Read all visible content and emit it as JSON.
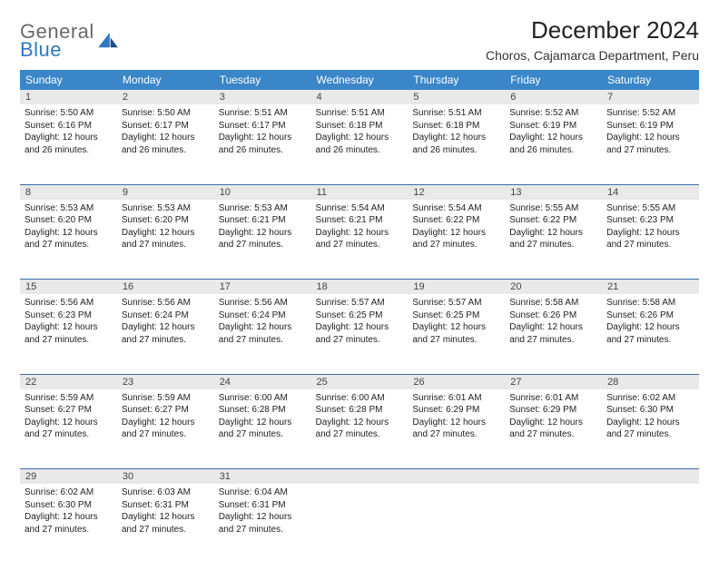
{
  "brand": {
    "line1": "General",
    "line2": "Blue"
  },
  "title": "December 2024",
  "location": "Choros, Cajamarca Department, Peru",
  "colors": {
    "header_bg": "#3a86c8",
    "header_text": "#ffffff",
    "daynum_bg": "#e9e9e9",
    "border": "#3a6ea8",
    "brand_gray": "#6a6a6a",
    "brand_blue": "#2f78c2"
  },
  "weekdays": [
    "Sunday",
    "Monday",
    "Tuesday",
    "Wednesday",
    "Thursday",
    "Friday",
    "Saturday"
  ],
  "weeks": [
    [
      {
        "n": "1",
        "sr": "5:50 AM",
        "ss": "6:16 PM",
        "dl": "12 hours and 26 minutes."
      },
      {
        "n": "2",
        "sr": "5:50 AM",
        "ss": "6:17 PM",
        "dl": "12 hours and 26 minutes."
      },
      {
        "n": "3",
        "sr": "5:51 AM",
        "ss": "6:17 PM",
        "dl": "12 hours and 26 minutes."
      },
      {
        "n": "4",
        "sr": "5:51 AM",
        "ss": "6:18 PM",
        "dl": "12 hours and 26 minutes."
      },
      {
        "n": "5",
        "sr": "5:51 AM",
        "ss": "6:18 PM",
        "dl": "12 hours and 26 minutes."
      },
      {
        "n": "6",
        "sr": "5:52 AM",
        "ss": "6:19 PM",
        "dl": "12 hours and 26 minutes."
      },
      {
        "n": "7",
        "sr": "5:52 AM",
        "ss": "6:19 PM",
        "dl": "12 hours and 27 minutes."
      }
    ],
    [
      {
        "n": "8",
        "sr": "5:53 AM",
        "ss": "6:20 PM",
        "dl": "12 hours and 27 minutes."
      },
      {
        "n": "9",
        "sr": "5:53 AM",
        "ss": "6:20 PM",
        "dl": "12 hours and 27 minutes."
      },
      {
        "n": "10",
        "sr": "5:53 AM",
        "ss": "6:21 PM",
        "dl": "12 hours and 27 minutes."
      },
      {
        "n": "11",
        "sr": "5:54 AM",
        "ss": "6:21 PM",
        "dl": "12 hours and 27 minutes."
      },
      {
        "n": "12",
        "sr": "5:54 AM",
        "ss": "6:22 PM",
        "dl": "12 hours and 27 minutes."
      },
      {
        "n": "13",
        "sr": "5:55 AM",
        "ss": "6:22 PM",
        "dl": "12 hours and 27 minutes."
      },
      {
        "n": "14",
        "sr": "5:55 AM",
        "ss": "6:23 PM",
        "dl": "12 hours and 27 minutes."
      }
    ],
    [
      {
        "n": "15",
        "sr": "5:56 AM",
        "ss": "6:23 PM",
        "dl": "12 hours and 27 minutes."
      },
      {
        "n": "16",
        "sr": "5:56 AM",
        "ss": "6:24 PM",
        "dl": "12 hours and 27 minutes."
      },
      {
        "n": "17",
        "sr": "5:56 AM",
        "ss": "6:24 PM",
        "dl": "12 hours and 27 minutes."
      },
      {
        "n": "18",
        "sr": "5:57 AM",
        "ss": "6:25 PM",
        "dl": "12 hours and 27 minutes."
      },
      {
        "n": "19",
        "sr": "5:57 AM",
        "ss": "6:25 PM",
        "dl": "12 hours and 27 minutes."
      },
      {
        "n": "20",
        "sr": "5:58 AM",
        "ss": "6:26 PM",
        "dl": "12 hours and 27 minutes."
      },
      {
        "n": "21",
        "sr": "5:58 AM",
        "ss": "6:26 PM",
        "dl": "12 hours and 27 minutes."
      }
    ],
    [
      {
        "n": "22",
        "sr": "5:59 AM",
        "ss": "6:27 PM",
        "dl": "12 hours and 27 minutes."
      },
      {
        "n": "23",
        "sr": "5:59 AM",
        "ss": "6:27 PM",
        "dl": "12 hours and 27 minutes."
      },
      {
        "n": "24",
        "sr": "6:00 AM",
        "ss": "6:28 PM",
        "dl": "12 hours and 27 minutes."
      },
      {
        "n": "25",
        "sr": "6:00 AM",
        "ss": "6:28 PM",
        "dl": "12 hours and 27 minutes."
      },
      {
        "n": "26",
        "sr": "6:01 AM",
        "ss": "6:29 PM",
        "dl": "12 hours and 27 minutes."
      },
      {
        "n": "27",
        "sr": "6:01 AM",
        "ss": "6:29 PM",
        "dl": "12 hours and 27 minutes."
      },
      {
        "n": "28",
        "sr": "6:02 AM",
        "ss": "6:30 PM",
        "dl": "12 hours and 27 minutes."
      }
    ],
    [
      {
        "n": "29",
        "sr": "6:02 AM",
        "ss": "6:30 PM",
        "dl": "12 hours and 27 minutes."
      },
      {
        "n": "30",
        "sr": "6:03 AM",
        "ss": "6:31 PM",
        "dl": "12 hours and 27 minutes."
      },
      {
        "n": "31",
        "sr": "6:04 AM",
        "ss": "6:31 PM",
        "dl": "12 hours and 27 minutes."
      },
      null,
      null,
      null,
      null
    ]
  ],
  "labels": {
    "sunrise": "Sunrise:",
    "sunset": "Sunset:",
    "daylight": "Daylight:"
  }
}
